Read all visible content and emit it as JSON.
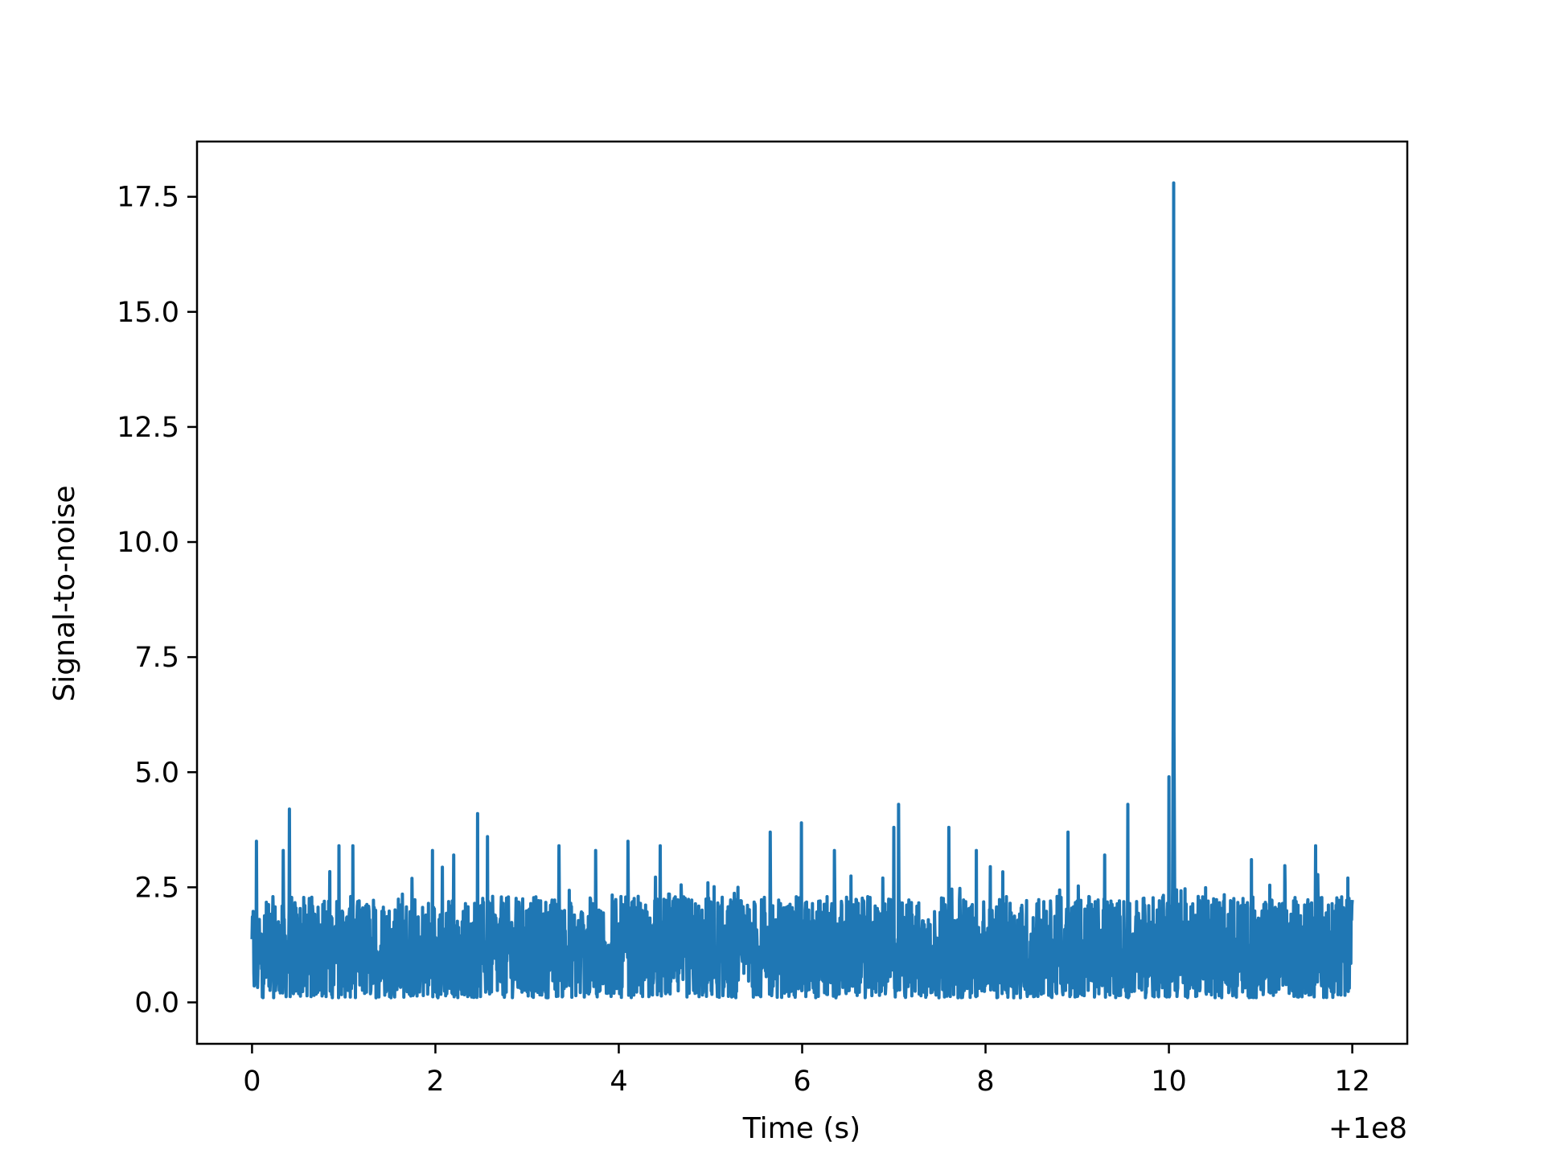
{
  "chart_data": {
    "type": "line",
    "title": "",
    "xlabel": "Time (s)",
    "ylabel": "Signal-to-noise",
    "x_offset_label": "+1e8",
    "xlim": [
      -0.6,
      12.6
    ],
    "ylim": [
      -0.9,
      18.7
    ],
    "x_ticks": [
      0,
      2,
      4,
      6,
      8,
      10,
      12
    ],
    "x_tick_labels": [
      "0",
      "2",
      "4",
      "6",
      "8",
      "10",
      "12"
    ],
    "y_ticks": [
      0.0,
      2.5,
      5.0,
      7.5,
      10.0,
      12.5,
      15.0,
      17.5
    ],
    "y_tick_labels": [
      "0.0",
      "2.5",
      "5.0",
      "7.5",
      "10.0",
      "12.5",
      "15.0",
      "17.5"
    ],
    "grid": false,
    "line_color": "#1f77b4",
    "series": [
      {
        "x_range": [
          0,
          12
        ],
        "sample_interval": 0.004,
        "noise_baseline": [
          0.1,
          2.2
        ],
        "peaks": [
          {
            "x": 0.05,
            "y": 3.5
          },
          {
            "x": 0.41,
            "y": 4.2
          },
          {
            "x": 0.34,
            "y": 3.3
          },
          {
            "x": 0.95,
            "y": 3.4
          },
          {
            "x": 1.1,
            "y": 3.4
          },
          {
            "x": 1.97,
            "y": 3.3
          },
          {
            "x": 2.2,
            "y": 3.2
          },
          {
            "x": 2.46,
            "y": 4.1
          },
          {
            "x": 2.57,
            "y": 3.6
          },
          {
            "x": 3.35,
            "y": 3.4
          },
          {
            "x": 3.75,
            "y": 3.3
          },
          {
            "x": 4.1,
            "y": 3.5
          },
          {
            "x": 4.45,
            "y": 3.4
          },
          {
            "x": 5.3,
            "y": 2.5
          },
          {
            "x": 5.65,
            "y": 3.7
          },
          {
            "x": 5.99,
            "y": 3.9
          },
          {
            "x": 6.35,
            "y": 3.3
          },
          {
            "x": 7.0,
            "y": 3.8
          },
          {
            "x": 7.05,
            "y": 4.3
          },
          {
            "x": 7.6,
            "y": 3.8
          },
          {
            "x": 7.9,
            "y": 3.3
          },
          {
            "x": 8.9,
            "y": 3.7
          },
          {
            "x": 9.3,
            "y": 3.2
          },
          {
            "x": 9.55,
            "y": 4.3
          },
          {
            "x": 10.0,
            "y": 4.9
          },
          {
            "x": 10.05,
            "y": 17.8
          },
          {
            "x": 10.9,
            "y": 3.1
          },
          {
            "x": 11.6,
            "y": 3.4
          },
          {
            "x": 11.95,
            "y": 2.7
          }
        ]
      }
    ]
  }
}
